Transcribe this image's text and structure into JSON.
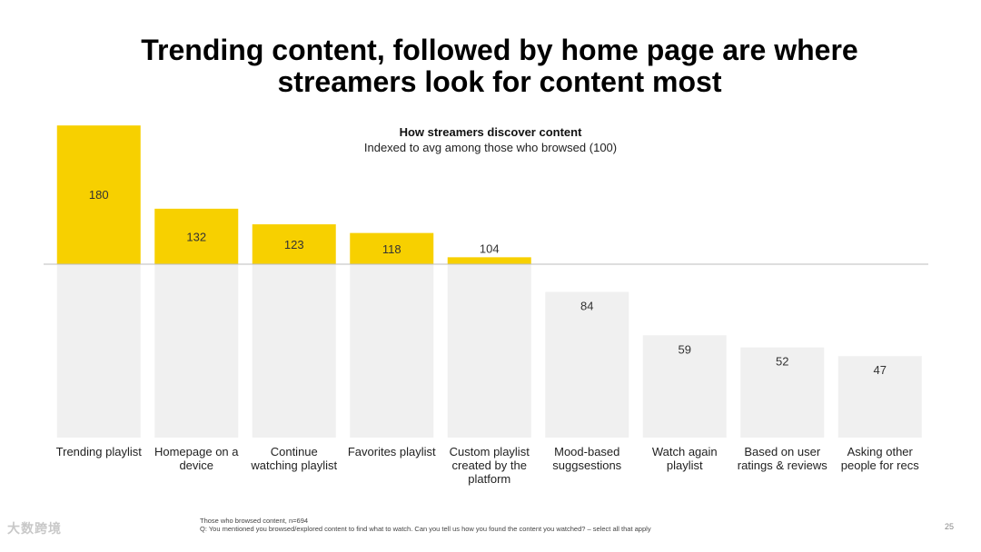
{
  "header": {
    "title_line1": "Trending content, followed by home page are where",
    "title_line2": "streamers look for content most"
  },
  "chart_data": {
    "type": "bar",
    "title": "How streamers discover content",
    "subtitle": "Indexed to avg among those who browsed (100)",
    "baseline": 100,
    "categories": [
      [
        "Trending playlist"
      ],
      [
        "Homepage on a",
        "device"
      ],
      [
        "Continue",
        "watching playlist"
      ],
      [
        "Favorites playlist"
      ],
      [
        "Custom playlist",
        "created by the",
        "platform"
      ],
      [
        "Mood-based",
        "suggsestions"
      ],
      [
        "Watch again",
        "playlist"
      ],
      [
        "Based on user",
        "ratings & reviews"
      ],
      [
        "Asking other",
        "people for recs"
      ]
    ],
    "values": [
      180,
      132,
      123,
      118,
      104,
      84,
      59,
      52,
      47
    ],
    "colors": {
      "above": "#F7D000",
      "below": "#F0F0F0",
      "baseline": "#BDBDBD"
    }
  },
  "footer": {
    "note1": "Those who browsed content, n=694",
    "note2": "Q: You mentioned you browsed/explored content to find what to watch. Can you tell us how you found the content you watched? – select all that apply",
    "page": "25",
    "watermark": "大数跨境"
  }
}
